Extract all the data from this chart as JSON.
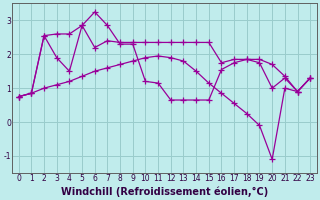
{
  "xlabel": "Windchill (Refroidissement éolien,°C)",
  "background_color": "#c0ecec",
  "line_color": "#990099",
  "grid_color": "#99cccc",
  "xlim": [
    -0.5,
    23.5
  ],
  "ylim": [
    -1.5,
    3.5
  ],
  "yticks": [
    -1,
    0,
    1,
    2,
    3
  ],
  "xticks": [
    0,
    1,
    2,
    3,
    4,
    5,
    6,
    7,
    8,
    9,
    10,
    11,
    12,
    13,
    14,
    15,
    16,
    17,
    18,
    19,
    20,
    21,
    22,
    23
  ],
  "line1_x": [
    0,
    1,
    2,
    3,
    4,
    5,
    6,
    7,
    8,
    9,
    10,
    11,
    12,
    13,
    14,
    15,
    16,
    17,
    18,
    19,
    20,
    21,
    22,
    23
  ],
  "line1_y": [
    0.75,
    0.85,
    2.55,
    2.6,
    2.6,
    2.85,
    2.2,
    2.4,
    2.35,
    2.35,
    2.35,
    2.35,
    2.35,
    2.35,
    2.35,
    2.35,
    1.75,
    1.85,
    1.85,
    1.85,
    1.7,
    1.35,
    0.9,
    1.3
  ],
  "line2_x": [
    0,
    1,
    2,
    3,
    4,
    5,
    6,
    7,
    8,
    9,
    10,
    11,
    12,
    13,
    14,
    15,
    16,
    17,
    18,
    19,
    20,
    21,
    22,
    23
  ],
  "line2_y": [
    0.75,
    0.85,
    2.55,
    1.9,
    1.5,
    2.85,
    3.25,
    2.85,
    2.3,
    2.3,
    1.2,
    1.15,
    0.65,
    0.65,
    0.65,
    0.65,
    1.55,
    1.75,
    1.85,
    1.75,
    1.0,
    1.3,
    0.9,
    1.3
  ],
  "line3_x": [
    0,
    1,
    2,
    3,
    4,
    5,
    6,
    7,
    8,
    9,
    10,
    11,
    12,
    13,
    14,
    15,
    16,
    17,
    18,
    19,
    20,
    21,
    22,
    23
  ],
  "line3_y": [
    0.75,
    0.85,
    1.0,
    1.1,
    1.2,
    1.35,
    1.5,
    1.6,
    1.7,
    1.8,
    1.9,
    1.95,
    1.9,
    1.8,
    1.5,
    1.15,
    0.85,
    0.55,
    0.25,
    -0.1,
    -1.1,
    1.0,
    0.9,
    1.3
  ],
  "marker": "+",
  "markersize": 4,
  "linewidth": 0.9,
  "tick_fontsize": 5.5,
  "xlabel_fontsize": 7.0
}
